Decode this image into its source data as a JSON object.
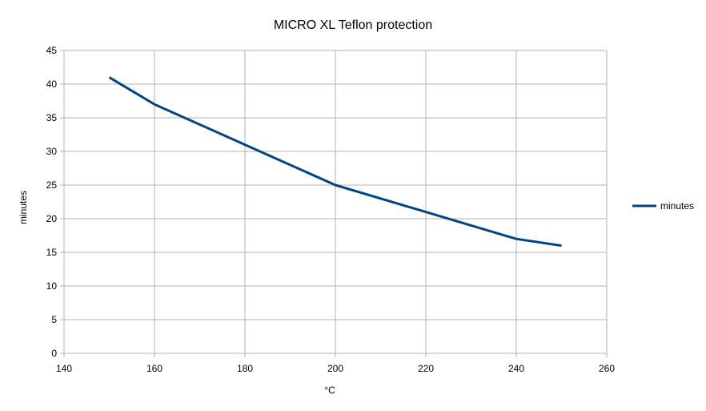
{
  "chart_data": {
    "type": "line",
    "title": "MICRO XL Teflon protection",
    "xlabel": "°C",
    "ylabel": "minutes",
    "xlim": [
      140,
      260
    ],
    "ylim": [
      0,
      45
    ],
    "x_ticks": [
      140,
      160,
      180,
      200,
      220,
      240,
      260
    ],
    "y_ticks": [
      0,
      5,
      10,
      15,
      20,
      25,
      30,
      35,
      40,
      45
    ],
    "grid": true,
    "legend_position": "right",
    "series": [
      {
        "name": "minutes",
        "color": "#004586",
        "points": [
          {
            "x": 150,
            "y": 41
          },
          {
            "x": 160,
            "y": 37
          },
          {
            "x": 180,
            "y": 31
          },
          {
            "x": 200,
            "y": 25
          },
          {
            "x": 220,
            "y": 21
          },
          {
            "x": 240,
            "y": 17
          },
          {
            "x": 250,
            "y": 16
          }
        ]
      }
    ]
  }
}
